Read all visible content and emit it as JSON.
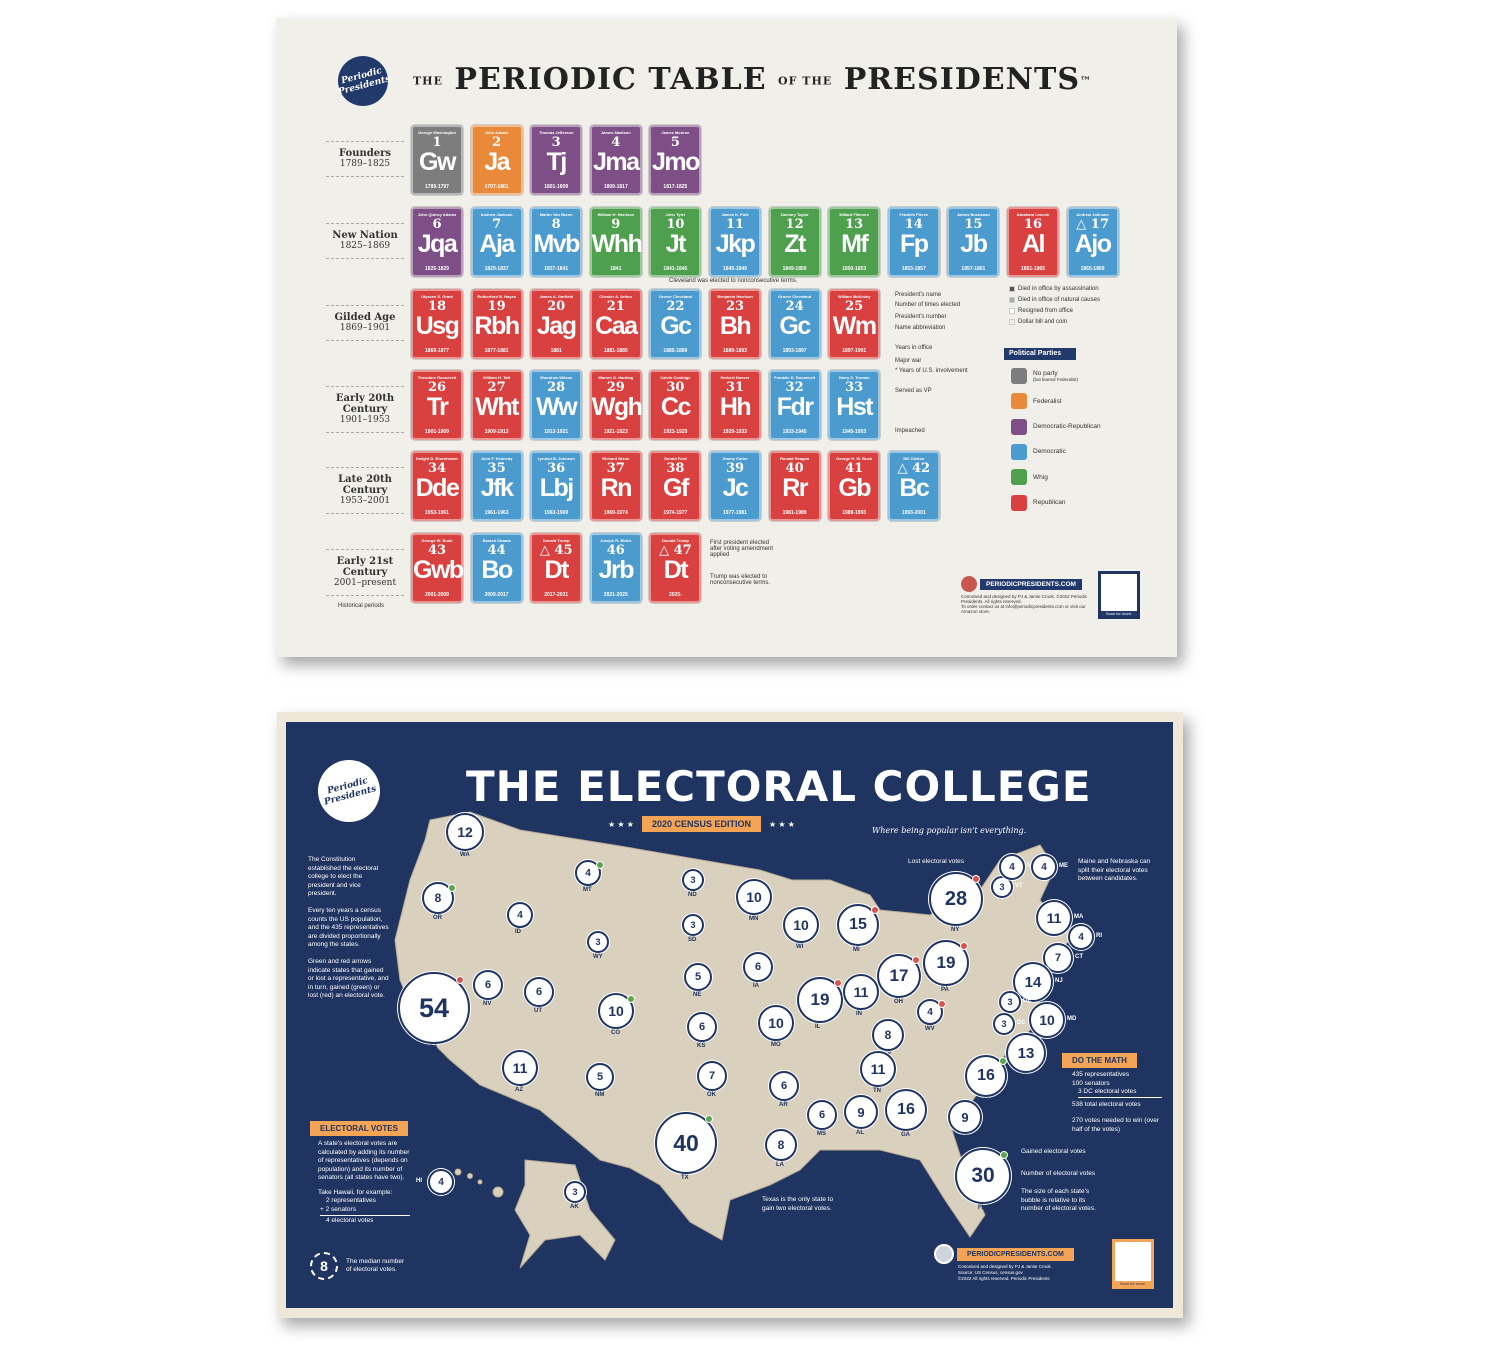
{
  "periodic_table": {
    "logo_text": "Periodic Presidents",
    "title_the": "THE",
    "title_main": "PERIODIC TABLE",
    "title_of": "OF THE",
    "title_end": "PRESIDENTS",
    "tm": "™",
    "periods": [
      {
        "name": "Founders",
        "years": "1789–1825"
      },
      {
        "name": "New Nation",
        "years": "1825–1869"
      },
      {
        "name": "Gilded Age",
        "years": "1869–1901"
      },
      {
        "name": "Early 20th Century",
        "years": "1901–1953"
      },
      {
        "name": "Late 20th Century",
        "years": "1953–2001"
      },
      {
        "name": "Early 21st Century",
        "years": "2001–present"
      }
    ],
    "periods_caption": "Historical periods",
    "party_colors": {
      "none": "#7d7d7d",
      "federalist": "#e98a3a",
      "dem_rep": "#7e4f86",
      "democratic": "#4b9bcf",
      "whig": "#4ea04f",
      "republican": "#d8413f"
    },
    "presidents": [
      {
        "n": "1",
        "name": "George Washington",
        "ab": "Gw",
        "yrs": "1789-1797",
        "party": "none",
        "row": 0
      },
      {
        "n": "2",
        "name": "John Adams",
        "ab": "Ja",
        "yrs": "1797-1801",
        "party": "federalist",
        "row": 0
      },
      {
        "n": "3",
        "name": "Thomas Jefferson",
        "ab": "Tj",
        "yrs": "1801-1809",
        "party": "dem_rep",
        "row": 0
      },
      {
        "n": "4",
        "name": "James Madison",
        "ab": "Jma",
        "yrs": "1809-1817",
        "party": "dem_rep",
        "row": 0
      },
      {
        "n": "5",
        "name": "James Monroe",
        "ab": "Jmo",
        "yrs": "1817-1825",
        "party": "dem_rep",
        "row": 0
      },
      {
        "n": "6",
        "name": "John Quincy Adams",
        "ab": "Jqa",
        "yrs": "1825-1829",
        "party": "dem_rep",
        "row": 1
      },
      {
        "n": "7",
        "name": "Andrew Jackson",
        "ab": "Aja",
        "yrs": "1829-1837",
        "party": "democratic",
        "row": 1
      },
      {
        "n": "8",
        "name": "Martin Van Buren",
        "ab": "Mvb",
        "yrs": "1837-1841",
        "party": "democratic",
        "row": 1
      },
      {
        "n": "9",
        "name": "William H. Harrison",
        "ab": "Whh",
        "yrs": "1841",
        "party": "whig",
        "row": 1
      },
      {
        "n": "10",
        "name": "John Tyler",
        "ab": "Jt",
        "yrs": "1841-1845",
        "party": "whig",
        "row": 1
      },
      {
        "n": "11",
        "name": "James K. Polk",
        "ab": "Jkp",
        "yrs": "1845-1849",
        "party": "democratic",
        "row": 1
      },
      {
        "n": "12",
        "name": "Zachary Taylor",
        "ab": "Zt",
        "yrs": "1849-1850",
        "party": "whig",
        "row": 1
      },
      {
        "n": "13",
        "name": "Millard Fillmore",
        "ab": "Mf",
        "yrs": "1850-1853",
        "party": "whig",
        "row": 1
      },
      {
        "n": "14",
        "name": "Franklin Pierce",
        "ab": "Fp",
        "yrs": "1853-1857",
        "party": "democratic",
        "row": 1
      },
      {
        "n": "15",
        "name": "James Buchanan",
        "ab": "Jb",
        "yrs": "1857-1861",
        "party": "democratic",
        "row": 1
      },
      {
        "n": "16",
        "name": "Abraham Lincoln",
        "ab": "Al",
        "yrs": "1861-1865",
        "party": "republican",
        "row": 1
      },
      {
        "n": "△ 17",
        "name": "Andrew Johnson",
        "ab": "Ajo",
        "yrs": "1865-1869",
        "party": "democratic",
        "row": 1
      },
      {
        "n": "18",
        "name": "Ulysses S. Grant",
        "ab": "Usg",
        "yrs": "1869-1877",
        "party": "republican",
        "row": 2
      },
      {
        "n": "19",
        "name": "Rutherford B. Hayes",
        "ab": "Rbh",
        "yrs": "1877-1881",
        "party": "republican",
        "row": 2
      },
      {
        "n": "20",
        "name": "James A. Garfield",
        "ab": "Jag",
        "yrs": "1881",
        "party": "republican",
        "row": 2
      },
      {
        "n": "21",
        "name": "Chester A. Arthur",
        "ab": "Caa",
        "yrs": "1881-1885",
        "party": "republican",
        "row": 2
      },
      {
        "n": "22",
        "name": "Grover Cleveland",
        "ab": "Gc",
        "yrs": "1885-1889",
        "party": "democratic",
        "row": 2
      },
      {
        "n": "23",
        "name": "Benjamin Harrison",
        "ab": "Bh",
        "yrs": "1889-1893",
        "party": "republican",
        "row": 2
      },
      {
        "n": "24",
        "name": "Grover Cleveland",
        "ab": "Gc",
        "yrs": "1893-1897",
        "party": "democratic",
        "row": 2
      },
      {
        "n": "25",
        "name": "William McKinley",
        "ab": "Wm",
        "yrs": "1897-1901",
        "party": "republican",
        "row": 2
      },
      {
        "n": "26",
        "name": "Theodore Roosevelt",
        "ab": "Tr",
        "yrs": "1901-1909",
        "party": "republican",
        "row": 3
      },
      {
        "n": "27",
        "name": "William H. Taft",
        "ab": "Wht",
        "yrs": "1909-1913",
        "party": "republican",
        "row": 3
      },
      {
        "n": "28",
        "name": "Woodrow Wilson",
        "ab": "Ww",
        "yrs": "1913-1921",
        "party": "democratic",
        "row": 3
      },
      {
        "n": "29",
        "name": "Warren G. Harding",
        "ab": "Wgh",
        "yrs": "1921-1923",
        "party": "republican",
        "row": 3
      },
      {
        "n": "30",
        "name": "Calvin Coolidge",
        "ab": "Cc",
        "yrs": "1923-1929",
        "party": "republican",
        "row": 3
      },
      {
        "n": "31",
        "name": "Herbert Hoover",
        "ab": "Hh",
        "yrs": "1929-1933",
        "party": "republican",
        "row": 3
      },
      {
        "n": "32",
        "name": "Franklin D. Roosevelt",
        "ab": "Fdr",
        "yrs": "1933-1945",
        "party": "democratic",
        "row": 3
      },
      {
        "n": "33",
        "name": "Harry S. Truman",
        "ab": "Hst",
        "yrs": "1945-1953",
        "party": "democratic",
        "row": 3
      },
      {
        "n": "34",
        "name": "Dwight D. Eisenhower",
        "ab": "Dde",
        "yrs": "1953-1961",
        "party": "republican",
        "row": 4
      },
      {
        "n": "35",
        "name": "John F. Kennedy",
        "ab": "Jfk",
        "yrs": "1961-1963",
        "party": "democratic",
        "row": 4
      },
      {
        "n": "36",
        "name": "Lyndon B. Johnson",
        "ab": "Lbj",
        "yrs": "1963-1969",
        "party": "democratic",
        "row": 4
      },
      {
        "n": "37",
        "name": "Richard Nixon",
        "ab": "Rn",
        "yrs": "1969-1974",
        "party": "republican",
        "row": 4
      },
      {
        "n": "38",
        "name": "Gerald Ford",
        "ab": "Gf",
        "yrs": "1974-1977",
        "party": "republican",
        "row": 4
      },
      {
        "n": "39",
        "name": "Jimmy Carter",
        "ab": "Jc",
        "yrs": "1977-1981",
        "party": "democratic",
        "row": 4
      },
      {
        "n": "40",
        "name": "Ronald Reagan",
        "ab": "Rr",
        "yrs": "1981-1989",
        "party": "republican",
        "row": 4
      },
      {
        "n": "41",
        "name": "George H. W. Bush",
        "ab": "Gb",
        "yrs": "1989-1993",
        "party": "republican",
        "row": 4
      },
      {
        "n": "△ 42",
        "name": "Bill Clinton",
        "ab": "Bc",
        "yrs": "1993-2001",
        "party": "democratic",
        "row": 4
      },
      {
        "n": "43",
        "name": "George W. Bush",
        "ab": "Gwb",
        "yrs": "2001-2009",
        "party": "republican",
        "row": 5
      },
      {
        "n": "44",
        "name": "Barack Obama",
        "ab": "Bo",
        "yrs": "2009-2017",
        "party": "democratic",
        "row": 5
      },
      {
        "n": "△ 45",
        "name": "Donald Trump",
        "ab": "Dt",
        "yrs": "2017-2021",
        "party": "republican",
        "row": 5
      },
      {
        "n": "46",
        "name": "Joseph R. Biden",
        "ab": "Jrb",
        "yrs": "2021-2025",
        "party": "democratic",
        "row": 5
      },
      {
        "n": "△ 47",
        "name": "Donald Trump",
        "ab": "Dt",
        "yrs": "2025-",
        "party": "republican",
        "row": 5
      }
    ],
    "key_labels": [
      "President's name",
      "Number of times elected",
      "President's number",
      "Name abbreviation",
      "Years in office",
      "Major war",
      "* Years of U.S. involvement",
      "Served as VP",
      "Impeached"
    ],
    "notes": {
      "cleveland": "Cleveland was elected to nonconsecutive terms.",
      "first_after_amendment": "First president elected after voting amendment applied",
      "trump": "Trump was elected to nonconsecutive terms."
    },
    "status_legend": [
      "Died in office by assassination",
      "Died in office of natural causes",
      "Resigned from office",
      "Dollar bill and coin"
    ],
    "parties_title": "Political Parties",
    "parties": [
      {
        "label": "No party",
        "sub": "(but leaned Federalist)",
        "key": "none"
      },
      {
        "label": "Federalist",
        "key": "federalist"
      },
      {
        "label": "Democratic-Republican",
        "key": "dem_rep"
      },
      {
        "label": "Democratic",
        "key": "democratic"
      },
      {
        "label": "Whig",
        "key": "whig"
      },
      {
        "label": "Republican",
        "key": "republican"
      }
    ],
    "footer": {
      "site": "PERIODICPRESIDENTS.COM",
      "credit": "Conceived and designed by PJ & Jamie Crook. ©2022 Periodic Presidents. All rights reserved.",
      "order": "To order contact us at info@periodicpresidents.com or visit our Amazon store.",
      "scan": "Scan for more."
    }
  },
  "electoral_college": {
    "logo_text": "Periodic Presidents",
    "title": "THE ELECTORAL COLLEGE",
    "edition": "2020 CENSUS EDITION",
    "stars": "★ ★ ★",
    "tagline": "Where being popular isn't everything.",
    "intro": [
      "The Constitution established the electoral college to elect the president and vice president.",
      "Every ten years a census counts the US population, and the 435 representatives are divided proportionally among the states.",
      "Green and red arrows indicate states that gained or lost a representative, and in turn, gained (green) or lost (red) an electoral vote."
    ],
    "lost_label": "Lost electoral votes",
    "maine_note": "Maine and Nebraska can split their electoral votes between candidates.",
    "texas_note": "Texas is the only state to gain two electoral votes.",
    "colors": {
      "background": "#1f3461",
      "land": "#d9d0bd",
      "gained": "#5aa64a",
      "lost": "#d8524e",
      "accent": "#f3a454"
    },
    "states": [
      {
        "st": "WA",
        "ev": 12
      },
      {
        "st": "OR",
        "ev": 8,
        "chg": "+1"
      },
      {
        "st": "CA",
        "ev": 54,
        "chg": "-1"
      },
      {
        "st": "NV",
        "ev": 6
      },
      {
        "st": "ID",
        "ev": 4
      },
      {
        "st": "MT",
        "ev": 4,
        "chg": "+1"
      },
      {
        "st": "WY",
        "ev": 3
      },
      {
        "st": "UT",
        "ev": 6
      },
      {
        "st": "AZ",
        "ev": 11
      },
      {
        "st": "CO",
        "ev": 10,
        "chg": "+1"
      },
      {
        "st": "NM",
        "ev": 5
      },
      {
        "st": "ND",
        "ev": 3
      },
      {
        "st": "SD",
        "ev": 3
      },
      {
        "st": "NE",
        "ev": 5
      },
      {
        "st": "KS",
        "ev": 6
      },
      {
        "st": "OK",
        "ev": 7
      },
      {
        "st": "TX",
        "ev": 40,
        "chg": "+2"
      },
      {
        "st": "MN",
        "ev": 10
      },
      {
        "st": "IA",
        "ev": 6
      },
      {
        "st": "MO",
        "ev": 10
      },
      {
        "st": "AR",
        "ev": 6
      },
      {
        "st": "LA",
        "ev": 8
      },
      {
        "st": "WI",
        "ev": 10
      },
      {
        "st": "IL",
        "ev": 19,
        "chg": "-1"
      },
      {
        "st": "MI",
        "ev": 15,
        "chg": "-1"
      },
      {
        "st": "IN",
        "ev": 11
      },
      {
        "st": "OH",
        "ev": 17,
        "chg": "-1"
      },
      {
        "st": "KY",
        "ev": 8
      },
      {
        "st": "TN",
        "ev": 11
      },
      {
        "st": "MS",
        "ev": 6
      },
      {
        "st": "AL",
        "ev": 9
      },
      {
        "st": "GA",
        "ev": 16
      },
      {
        "st": "FL",
        "ev": 30,
        "chg": "+1"
      },
      {
        "st": "SC",
        "ev": 9
      },
      {
        "st": "NC",
        "ev": 16,
        "chg": "+1"
      },
      {
        "st": "VA",
        "ev": 13
      },
      {
        "st": "WV",
        "ev": 4,
        "chg": "-1"
      },
      {
        "st": "PA",
        "ev": 19,
        "chg": "-1"
      },
      {
        "st": "NY",
        "ev": 28,
        "chg": "-1"
      },
      {
        "st": "VT",
        "ev": 3
      },
      {
        "st": "NH",
        "ev": 4
      },
      {
        "st": "ME",
        "ev": 4
      },
      {
        "st": "MA",
        "ev": 11
      },
      {
        "st": "RI",
        "ev": 4
      },
      {
        "st": "CT",
        "ev": 7
      },
      {
        "st": "NJ",
        "ev": 14
      },
      {
        "st": "DE",
        "ev": 3
      },
      {
        "st": "MD",
        "ev": 10
      },
      {
        "st": "DC",
        "ev": 3
      },
      {
        "st": "AK",
        "ev": 3
      },
      {
        "st": "HI",
        "ev": 4
      }
    ],
    "ev_box": {
      "title": "ELECTORAL VOTES",
      "text": "A state's electoral votes are calculated by adding its number of representatives (depends on population) and its number of senators (all states have two).",
      "example": "Take Hawaii, for example:",
      "line1": "2 representatives",
      "line2": "+ 2 senators",
      "line3": "4 electoral votes"
    },
    "median": {
      "value": "8",
      "text": "The median number of electoral votes."
    },
    "math": {
      "title": "DO THE MATH",
      "lines": [
        "435 representatives",
        "100 senators",
        "3 DC electoral votes"
      ],
      "total": "538 total electoral votes",
      "win": "270 votes needed to win (over half of the votes)"
    },
    "legend": {
      "gained": "Gained electoral votes",
      "number": "Number of electoral votes",
      "size_note": "The size of each state's bubble is relative to its number of electoral votes."
    },
    "footer": {
      "site": "PERIODICPRESIDENTS.COM",
      "credit": "Conceived and designed by PJ & Jamie Crook",
      "source": "Source: US Census, census.gov",
      "copy": "©2022 All rights reserved. Periodic Presidents",
      "scan": "Scan for more."
    }
  }
}
